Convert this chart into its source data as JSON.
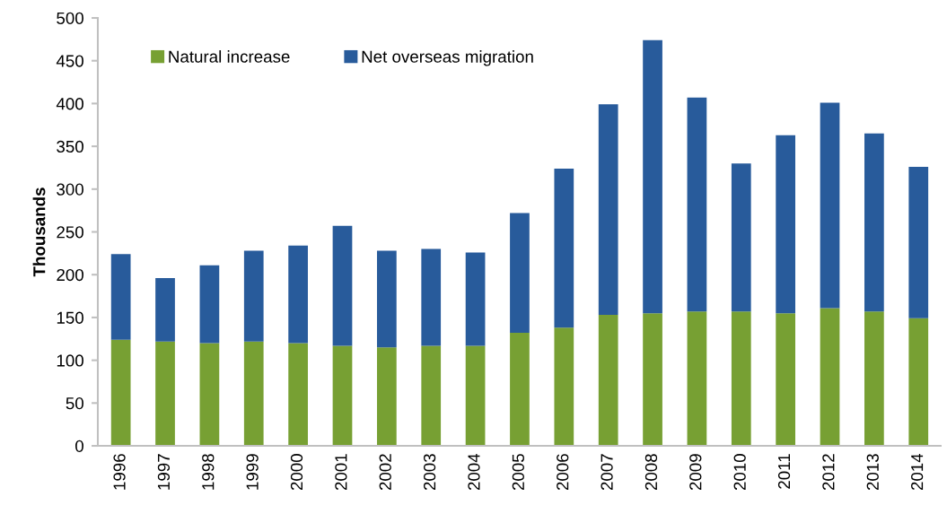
{
  "chart_data": {
    "type": "bar",
    "stacked": true,
    "ylabel": "Thousands",
    "categories": [
      "1996",
      "1997",
      "1998",
      "1999",
      "2000",
      "2001",
      "2002",
      "2003",
      "2004",
      "2005",
      "2006",
      "2007",
      "2008",
      "2009",
      "2010",
      "2011",
      "2012",
      "2013",
      "2014"
    ],
    "series": [
      {
        "name": "Natural increase",
        "color": "#77a033",
        "values": [
          124,
          122,
          120,
          122,
          120,
          117,
          115,
          117,
          117,
          132,
          138,
          153,
          155,
          157,
          157,
          155,
          161,
          157,
          149
        ]
      },
      {
        "name": "Net overseas migration",
        "color": "#285b9b",
        "values": [
          100,
          74,
          91,
          106,
          114,
          140,
          113,
          113,
          109,
          140,
          186,
          246,
          319,
          250,
          173,
          208,
          240,
          208,
          177
        ]
      }
    ],
    "ylim": [
      0,
      500
    ],
    "yticks": [
      0,
      50,
      100,
      150,
      200,
      250,
      300,
      350,
      400,
      450,
      500
    ],
    "grid": false,
    "legend": "top left"
  }
}
